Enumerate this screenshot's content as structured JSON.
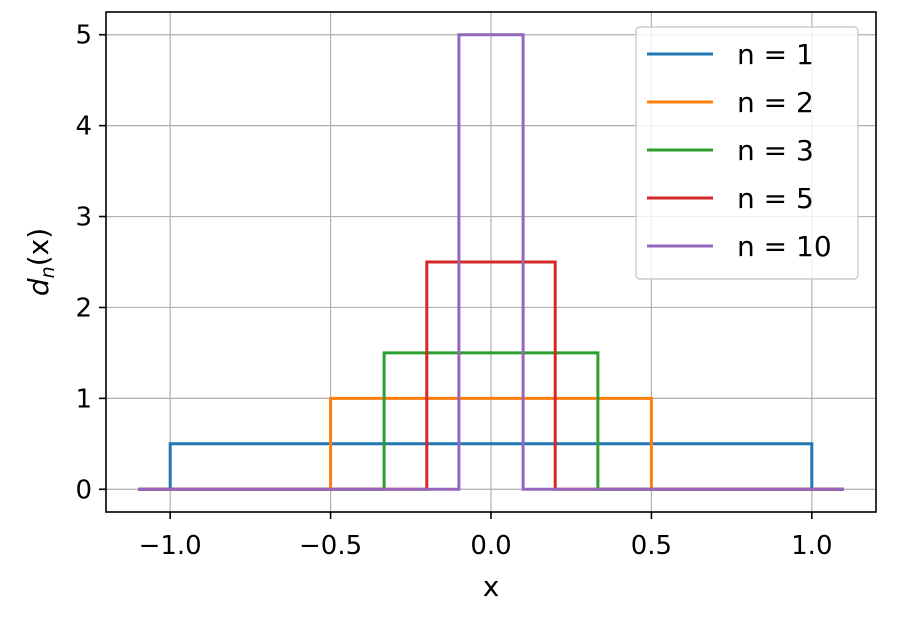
{
  "chart_data": {
    "type": "line",
    "title": "",
    "xlabel": "x",
    "ylabel_main": "d",
    "ylabel_sub": "n",
    "ylabel_tail": "(x)",
    "xlim": [
      -1.2,
      1.2
    ],
    "ylim": [
      -0.25,
      5.25
    ],
    "x_ticks": [
      -1.0,
      -0.5,
      0.0,
      0.5,
      1.0
    ],
    "x_tick_labels": [
      "−1.0",
      "−0.5",
      "0.0",
      "0.5",
      "1.0"
    ],
    "y_ticks": [
      0,
      1,
      2,
      3,
      4,
      5
    ],
    "y_tick_labels": [
      "0",
      "1",
      "2",
      "3",
      "4",
      "5"
    ],
    "grid": true,
    "legend_position": "top-right",
    "x_domain": [
      -1.1,
      1.1
    ],
    "series": [
      {
        "name": "n = 1",
        "n": 1,
        "color": "#1f77b4",
        "height": 0.5,
        "half_width": 1.0
      },
      {
        "name": "n = 2",
        "n": 2,
        "color": "#ff7f0e",
        "height": 1.0,
        "half_width": 0.5
      },
      {
        "name": "n = 3",
        "n": 3,
        "color": "#2ca02c",
        "height": 1.5,
        "half_width": 0.3333
      },
      {
        "name": "n = 5",
        "n": 5,
        "color": "#d62728",
        "height": 2.5,
        "half_width": 0.2
      },
      {
        "name": "n = 10",
        "n": 10,
        "color": "#9467bd",
        "height": 5.0,
        "half_width": 0.1
      }
    ]
  }
}
